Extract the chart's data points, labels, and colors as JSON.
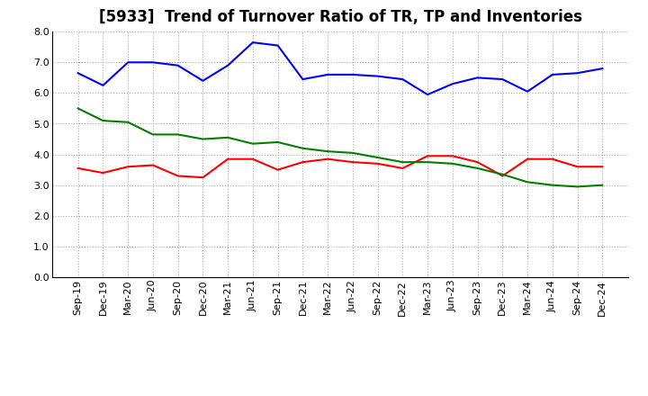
{
  "title": "[5933]  Trend of Turnover Ratio of TR, TP and Inventories",
  "xlabel": "",
  "ylabel": "",
  "ylim": [
    0.0,
    8.0
  ],
  "yticks": [
    0.0,
    1.0,
    2.0,
    3.0,
    4.0,
    5.0,
    6.0,
    7.0,
    8.0
  ],
  "x_labels": [
    "Sep-19",
    "Dec-19",
    "Mar-20",
    "Jun-20",
    "Sep-20",
    "Dec-20",
    "Mar-21",
    "Jun-21",
    "Sep-21",
    "Dec-21",
    "Mar-22",
    "Jun-22",
    "Sep-22",
    "Dec-22",
    "Mar-23",
    "Jun-23",
    "Sep-23",
    "Dec-23",
    "Mar-24",
    "Jun-24",
    "Sep-24",
    "Dec-24"
  ],
  "trade_receivables": [
    3.55,
    3.4,
    3.6,
    3.65,
    3.3,
    3.25,
    3.85,
    3.85,
    3.5,
    3.75,
    3.85,
    3.75,
    3.7,
    3.55,
    3.95,
    3.95,
    3.75,
    3.3,
    3.85,
    3.85,
    3.6,
    3.6
  ],
  "trade_payables": [
    6.65,
    6.25,
    7.0,
    7.0,
    6.9,
    6.4,
    6.9,
    7.65,
    7.55,
    6.45,
    6.6,
    6.6,
    6.55,
    6.45,
    5.95,
    6.3,
    6.5,
    6.45,
    6.05,
    6.6,
    6.65,
    6.8
  ],
  "inventories": [
    5.5,
    5.1,
    5.05,
    4.65,
    4.65,
    4.5,
    4.55,
    4.35,
    4.4,
    4.2,
    4.1,
    4.05,
    3.9,
    3.75,
    3.75,
    3.7,
    3.55,
    3.35,
    3.1,
    3.0,
    2.95,
    3.0
  ],
  "tr_color": "#ff0000",
  "tp_color": "#0000ff",
  "inv_color": "#008000",
  "background_color": "#ffffff",
  "grid_color": "#aaaaaa",
  "title_fontsize": 12,
  "legend_fontsize": 9,
  "tick_fontsize": 8
}
